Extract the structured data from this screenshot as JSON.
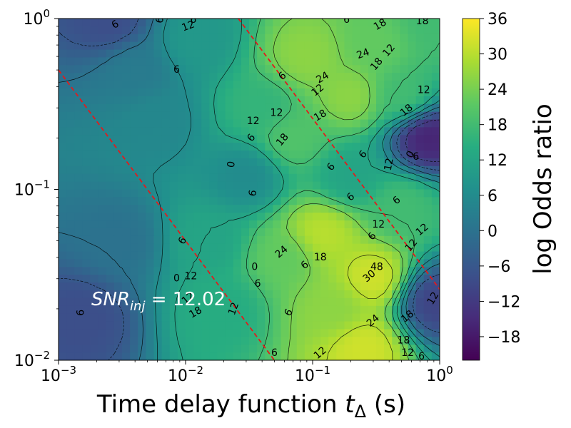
{
  "chart_data": {
    "type": "heatmap",
    "title": "",
    "xlabel": "Time delay function t_Δ (s)",
    "ylabel": "",
    "xscale": "log",
    "yscale": "log",
    "xlim": [
      0.001,
      1
    ],
    "ylim": [
      0.01,
      1
    ],
    "x_ticks": [
      {
        "value": 0.001,
        "base": "10",
        "exp": "−3"
      },
      {
        "value": 0.01,
        "base": "10",
        "exp": "−2"
      },
      {
        "value": 0.1,
        "base": "10",
        "exp": "−1"
      },
      {
        "value": 1,
        "base": "10",
        "exp": "0"
      }
    ],
    "y_ticks": [
      {
        "value": 0.01,
        "base": "10",
        "exp": "−2"
      },
      {
        "value": 0.1,
        "base": "10",
        "exp": "−1"
      },
      {
        "value": 1,
        "base": "10",
        "exp": "0"
      }
    ],
    "colorbar": {
      "label": "log  Odds ratio",
      "range": [
        -22,
        36
      ],
      "ticks": [
        "36",
        "30",
        "24",
        "18",
        "12",
        "6",
        "0",
        "−6",
        "−12",
        "−18"
      ],
      "tick_values": [
        36,
        30,
        24,
        18,
        12,
        6,
        0,
        -6,
        -12,
        -18
      ],
      "colormap": "viridis",
      "colors": [
        "#440154",
        "#472c7a",
        "#3b518b",
        "#2c718e",
        "#21908d",
        "#27ad81",
        "#5cc863",
        "#aadc32",
        "#fde725"
      ]
    },
    "annotation": {
      "text": "SNR",
      "subscript": "inj",
      "equals": " = ",
      "value": "12.02"
    },
    "reference_lines": [
      {
        "color": "#e31a1c",
        "style": "dashed",
        "points": [
          [
            0.001,
            0.5
          ],
          [
            0.05,
            0.01
          ]
        ]
      },
      {
        "color": "#e31a1c",
        "style": "dashed",
        "points": [
          [
            0.026,
            1
          ],
          [
            1,
            0.026
          ]
        ]
      }
    ],
    "hotspots": [
      {
        "x": 0.003,
        "y": 0.05,
        "value": 0
      },
      {
        "x": 0.004,
        "y": 0.5,
        "value": 2
      },
      {
        "x": 0.0025,
        "y": 0.95,
        "value": -8
      },
      {
        "x": 0.0015,
        "y": 0.018,
        "value": -8
      },
      {
        "x": 0.006,
        "y": 0.25,
        "value": 5
      },
      {
        "x": 0.012,
        "y": 0.75,
        "value": 9
      },
      {
        "x": 0.015,
        "y": 0.05,
        "value": 12
      },
      {
        "x": 0.02,
        "y": 0.02,
        "value": 14
      },
      {
        "x": 0.03,
        "y": 0.12,
        "value": 6
      },
      {
        "x": 0.04,
        "y": 0.3,
        "value": 16
      },
      {
        "x": 0.06,
        "y": 0.04,
        "value": 22
      },
      {
        "x": 0.07,
        "y": 0.2,
        "value": 20
      },
      {
        "x": 0.09,
        "y": 0.6,
        "value": 26
      },
      {
        "x": 0.12,
        "y": 0.055,
        "value": 30
      },
      {
        "x": 0.15,
        "y": 0.02,
        "value": 26
      },
      {
        "x": 0.25,
        "y": 0.012,
        "value": 32
      },
      {
        "x": 0.3,
        "y": 0.03,
        "value": 32
      },
      {
        "x": 0.2,
        "y": 0.35,
        "value": 26
      },
      {
        "x": 0.3,
        "y": 0.7,
        "value": 22
      },
      {
        "x": 0.5,
        "y": 0.08,
        "value": 18
      },
      {
        "x": 0.5,
        "y": 0.35,
        "value": 18
      },
      {
        "x": 0.8,
        "y": 0.2,
        "value": -16
      },
      {
        "x": 0.9,
        "y": 0.022,
        "value": -10
      },
      {
        "x": 0.9,
        "y": 0.95,
        "value": 18
      },
      {
        "x": 0.2,
        "y": 0.12,
        "value": 12
      }
    ],
    "contour_labels": [
      {
        "text": "6",
        "x": 0.0028,
        "y": 0.92,
        "rot": -30
      },
      {
        "text": "12",
        "x": 0.0105,
        "y": 0.9,
        "rot": -20
      },
      {
        "text": "6",
        "x": 0.0115,
        "y": 0.98,
        "rot": 0
      },
      {
        "text": "6",
        "x": 0.0085,
        "y": 0.5,
        "rot": 0
      },
      {
        "text": "0",
        "x": 0.023,
        "y": 0.14,
        "rot": -80
      },
      {
        "text": "6",
        "x": 0.034,
        "y": 0.095,
        "rot": -80
      },
      {
        "text": "6",
        "x": 0.0095,
        "y": 0.05,
        "rot": -60
      },
      {
        "text": "0",
        "x": 0.0085,
        "y": 0.03,
        "rot": 0
      },
      {
        "text": "12",
        "x": 0.011,
        "y": 0.031,
        "rot": 0
      },
      {
        "text": "12",
        "x": 0.0105,
        "y": 0.023,
        "rot": -40
      },
      {
        "text": "18",
        "x": 0.012,
        "y": 0.019,
        "rot": -30
      },
      {
        "text": "6",
        "x": 0.0015,
        "y": 0.019,
        "rot": -90
      },
      {
        "text": "12",
        "x": 0.024,
        "y": 0.02,
        "rot": -70
      },
      {
        "text": "6",
        "x": 0.05,
        "y": 0.011,
        "rot": 0
      },
      {
        "text": "12",
        "x": 0.115,
        "y": 0.011,
        "rot": -40
      },
      {
        "text": "6",
        "x": 0.065,
        "y": 0.019,
        "rot": -60
      },
      {
        "text": "0",
        "x": 0.035,
        "y": 0.035,
        "rot": 0
      },
      {
        "text": "6",
        "x": 0.037,
        "y": 0.028,
        "rot": 0
      },
      {
        "text": "24",
        "x": 0.057,
        "y": 0.043,
        "rot": -40
      },
      {
        "text": "6",
        "x": 0.087,
        "y": 0.036,
        "rot": -40
      },
      {
        "text": "18",
        "x": 0.115,
        "y": 0.04,
        "rot": 0
      },
      {
        "text": "30",
        "x": 0.28,
        "y": 0.031,
        "rot": -40
      },
      {
        "text": "48",
        "x": 0.32,
        "y": 0.035,
        "rot": 0
      },
      {
        "text": "24",
        "x": 0.3,
        "y": 0.017,
        "rot": -40
      },
      {
        "text": "6",
        "x": 0.295,
        "y": 0.053,
        "rot": -50
      },
      {
        "text": "12",
        "x": 0.6,
        "y": 0.047,
        "rot": -50
      },
      {
        "text": "12",
        "x": 0.33,
        "y": 0.062,
        "rot": 0
      },
      {
        "text": "6",
        "x": 0.46,
        "y": 0.086,
        "rot": -40
      },
      {
        "text": "6",
        "x": 0.25,
        "y": 0.16,
        "rot": -50
      },
      {
        "text": "12",
        "x": 0.4,
        "y": 0.14,
        "rot": -80
      },
      {
        "text": "0",
        "x": 0.59,
        "y": 0.16,
        "rot": -60
      },
      {
        "text": "6",
        "x": 0.65,
        "y": 0.155,
        "rot": 0
      },
      {
        "text": "6",
        "x": 0.14,
        "y": 0.135,
        "rot": -50
      },
      {
        "text": "6",
        "x": 0.033,
        "y": 0.2,
        "rot": -50
      },
      {
        "text": "12",
        "x": 0.034,
        "y": 0.25,
        "rot": 0
      },
      {
        "text": "18",
        "x": 0.058,
        "y": 0.195,
        "rot": -50
      },
      {
        "text": "12",
        "x": 0.052,
        "y": 0.28,
        "rot": 0
      },
      {
        "text": "18",
        "x": 0.115,
        "y": 0.27,
        "rot": -30
      },
      {
        "text": "12",
        "x": 0.11,
        "y": 0.38,
        "rot": -40
      },
      {
        "text": "6",
        "x": 0.058,
        "y": 0.46,
        "rot": -40
      },
      {
        "text": "24",
        "x": 0.12,
        "y": 0.45,
        "rot": -30
      },
      {
        "text": "24",
        "x": 0.25,
        "y": 0.62,
        "rot": -20
      },
      {
        "text": "18",
        "x": 0.32,
        "y": 0.54,
        "rot": -50
      },
      {
        "text": "12",
        "x": 0.4,
        "y": 0.65,
        "rot": -50
      },
      {
        "text": "18",
        "x": 0.34,
        "y": 0.92,
        "rot": -30
      },
      {
        "text": "18",
        "x": 0.73,
        "y": 0.96,
        "rot": 0
      },
      {
        "text": "12",
        "x": 0.75,
        "y": 0.38,
        "rot": 0
      },
      {
        "text": "18",
        "x": 0.55,
        "y": 0.29,
        "rot": -40
      },
      {
        "text": "12",
        "x": 0.73,
        "y": 0.058,
        "rot": -40
      },
      {
        "text": "18",
        "x": 0.52,
        "y": 0.013,
        "rot": 0
      },
      {
        "text": "12",
        "x": 0.56,
        "y": 0.011,
        "rot": 0
      },
      {
        "text": "6",
        "x": 0.72,
        "y": 0.0105,
        "rot": 0
      },
      {
        "text": "12",
        "x": 0.89,
        "y": 0.023,
        "rot": -60
      },
      {
        "text": "18",
        "x": 0.56,
        "y": 0.018,
        "rot": -40
      },
      {
        "text": "6",
        "x": 0.185,
        "y": 0.98,
        "rot": 0
      },
      {
        "text": "6",
        "x": 0.2,
        "y": 0.09,
        "rot": -40
      },
      {
        "text": "6",
        "x": 0.0063,
        "y": 0.98,
        "rot": -80
      }
    ]
  }
}
